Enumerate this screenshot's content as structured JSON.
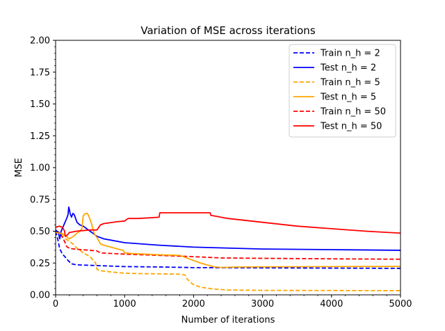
{
  "chart_data": {
    "type": "line",
    "title": "Variation of MSE across iterations",
    "xlabel": "Number of iterations",
    "ylabel": "MSE",
    "xlim": [
      0,
      5000
    ],
    "ylim": [
      0,
      2.0
    ],
    "xticks": [
      "0",
      "1000",
      "2000",
      "3000",
      "4000",
      "5000"
    ],
    "yticks": [
      "0.00",
      "0.25",
      "0.50",
      "0.75",
      "1.00",
      "1.25",
      "1.50",
      "1.75",
      "2.00"
    ],
    "grid": false,
    "legend_position": "top-right",
    "series": [
      {
        "name": "Train n_h = 2",
        "color": "#0000ff",
        "style": "dashed",
        "points": [
          [
            0,
            0.5
          ],
          [
            30,
            0.44
          ],
          [
            60,
            0.36
          ],
          [
            100,
            0.32
          ],
          [
            150,
            0.29
          ],
          [
            180,
            0.27
          ],
          [
            200,
            0.26
          ],
          [
            220,
            0.245
          ],
          [
            300,
            0.236
          ],
          [
            500,
            0.232
          ],
          [
            800,
            0.226
          ],
          [
            1000,
            0.222
          ],
          [
            1500,
            0.219
          ],
          [
            2000,
            0.214
          ],
          [
            3000,
            0.212
          ],
          [
            4000,
            0.21
          ],
          [
            5000,
            0.208
          ]
        ]
      },
      {
        "name": "Test n_h = 2",
        "color": "#0000ff",
        "style": "solid",
        "points": [
          [
            0,
            0.51
          ],
          [
            40,
            0.49
          ],
          [
            60,
            0.44
          ],
          [
            80,
            0.5
          ],
          [
            120,
            0.55
          ],
          [
            160,
            0.6
          ],
          [
            180,
            0.63
          ],
          [
            190,
            0.69
          ],
          [
            200,
            0.67
          ],
          [
            210,
            0.64
          ],
          [
            230,
            0.61
          ],
          [
            250,
            0.64
          ],
          [
            270,
            0.63
          ],
          [
            290,
            0.6
          ],
          [
            310,
            0.57
          ],
          [
            350,
            0.55
          ],
          [
            400,
            0.54
          ],
          [
            500,
            0.5
          ],
          [
            600,
            0.46
          ],
          [
            700,
            0.44
          ],
          [
            800,
            0.43
          ],
          [
            1000,
            0.41
          ],
          [
            1500,
            0.39
          ],
          [
            2000,
            0.375
          ],
          [
            3000,
            0.36
          ],
          [
            4000,
            0.355
          ],
          [
            5000,
            0.35
          ]
        ]
      },
      {
        "name": "Train n_h = 5",
        "color": "#ffa500",
        "style": "dashed",
        "points": [
          [
            0,
            0.5
          ],
          [
            60,
            0.49
          ],
          [
            120,
            0.45
          ],
          [
            200,
            0.42
          ],
          [
            250,
            0.4
          ],
          [
            300,
            0.37
          ],
          [
            400,
            0.33
          ],
          [
            500,
            0.3
          ],
          [
            580,
            0.25
          ],
          [
            600,
            0.2
          ],
          [
            650,
            0.19
          ],
          [
            800,
            0.18
          ],
          [
            1000,
            0.17
          ],
          [
            1200,
            0.167
          ],
          [
            1500,
            0.165
          ],
          [
            1800,
            0.162
          ],
          [
            1880,
            0.155
          ],
          [
            1900,
            0.13
          ],
          [
            1950,
            0.1
          ],
          [
            2000,
            0.08
          ],
          [
            2100,
            0.06
          ],
          [
            2300,
            0.045
          ],
          [
            2500,
            0.038
          ],
          [
            3000,
            0.035
          ],
          [
            4000,
            0.034
          ],
          [
            5000,
            0.033
          ]
        ]
      },
      {
        "name": "Test n_h = 5",
        "color": "#ffa500",
        "style": "solid",
        "points": [
          [
            0,
            0.49
          ],
          [
            100,
            0.48
          ],
          [
            150,
            0.46
          ],
          [
            200,
            0.44
          ],
          [
            230,
            0.45
          ],
          [
            260,
            0.46
          ],
          [
            300,
            0.48
          ],
          [
            350,
            0.5
          ],
          [
            380,
            0.52
          ],
          [
            400,
            0.62
          ],
          [
            420,
            0.635
          ],
          [
            460,
            0.64
          ],
          [
            480,
            0.62
          ],
          [
            500,
            0.59
          ],
          [
            520,
            0.56
          ],
          [
            540,
            0.52
          ],
          [
            560,
            0.48
          ],
          [
            600,
            0.45
          ],
          [
            630,
            0.42
          ],
          [
            650,
            0.4
          ],
          [
            700,
            0.39
          ],
          [
            800,
            0.375
          ],
          [
            900,
            0.36
          ],
          [
            980,
            0.35
          ],
          [
            1000,
            0.33
          ],
          [
            1100,
            0.325
          ],
          [
            1300,
            0.32
          ],
          [
            1500,
            0.315
          ],
          [
            1800,
            0.31
          ],
          [
            1900,
            0.29
          ],
          [
            2000,
            0.27
          ],
          [
            2100,
            0.25
          ],
          [
            2200,
            0.235
          ],
          [
            2300,
            0.22
          ],
          [
            2400,
            0.215
          ],
          [
            2600,
            0.218
          ],
          [
            3000,
            0.22
          ],
          [
            4000,
            0.222
          ],
          [
            5000,
            0.223
          ]
        ]
      },
      {
        "name": "Train n_h = 50",
        "color": "#ff0000",
        "style": "dashed",
        "points": [
          [
            0,
            0.5
          ],
          [
            60,
            0.49
          ],
          [
            100,
            0.45
          ],
          [
            130,
            0.42
          ],
          [
            160,
            0.38
          ],
          [
            200,
            0.365
          ],
          [
            300,
            0.358
          ],
          [
            500,
            0.35
          ],
          [
            600,
            0.345
          ],
          [
            650,
            0.33
          ],
          [
            800,
            0.325
          ],
          [
            1000,
            0.32
          ],
          [
            1500,
            0.31
          ],
          [
            2000,
            0.3
          ],
          [
            2200,
            0.295
          ],
          [
            2400,
            0.29
          ],
          [
            3000,
            0.287
          ],
          [
            4000,
            0.283
          ],
          [
            5000,
            0.28
          ]
        ]
      },
      {
        "name": "Test n_h = 50",
        "color": "#ff0000",
        "style": "solid",
        "points": [
          [
            0,
            0.53
          ],
          [
            50,
            0.54
          ],
          [
            100,
            0.53
          ],
          [
            130,
            0.5
          ],
          [
            140,
            0.46
          ],
          [
            170,
            0.47
          ],
          [
            200,
            0.49
          ],
          [
            300,
            0.5
          ],
          [
            400,
            0.505
          ],
          [
            500,
            0.51
          ],
          [
            600,
            0.51
          ],
          [
            650,
            0.55
          ],
          [
            700,
            0.56
          ],
          [
            900,
            0.575
          ],
          [
            1000,
            0.58
          ],
          [
            1050,
            0.6
          ],
          [
            1200,
            0.6
          ],
          [
            1500,
            0.61
          ],
          [
            1510,
            0.645
          ],
          [
            2000,
            0.645
          ],
          [
            2240,
            0.645
          ],
          [
            2250,
            0.625
          ],
          [
            2500,
            0.6
          ],
          [
            3000,
            0.57
          ],
          [
            3500,
            0.54
          ],
          [
            4000,
            0.52
          ],
          [
            4500,
            0.5
          ],
          [
            5000,
            0.485
          ]
        ]
      }
    ]
  }
}
